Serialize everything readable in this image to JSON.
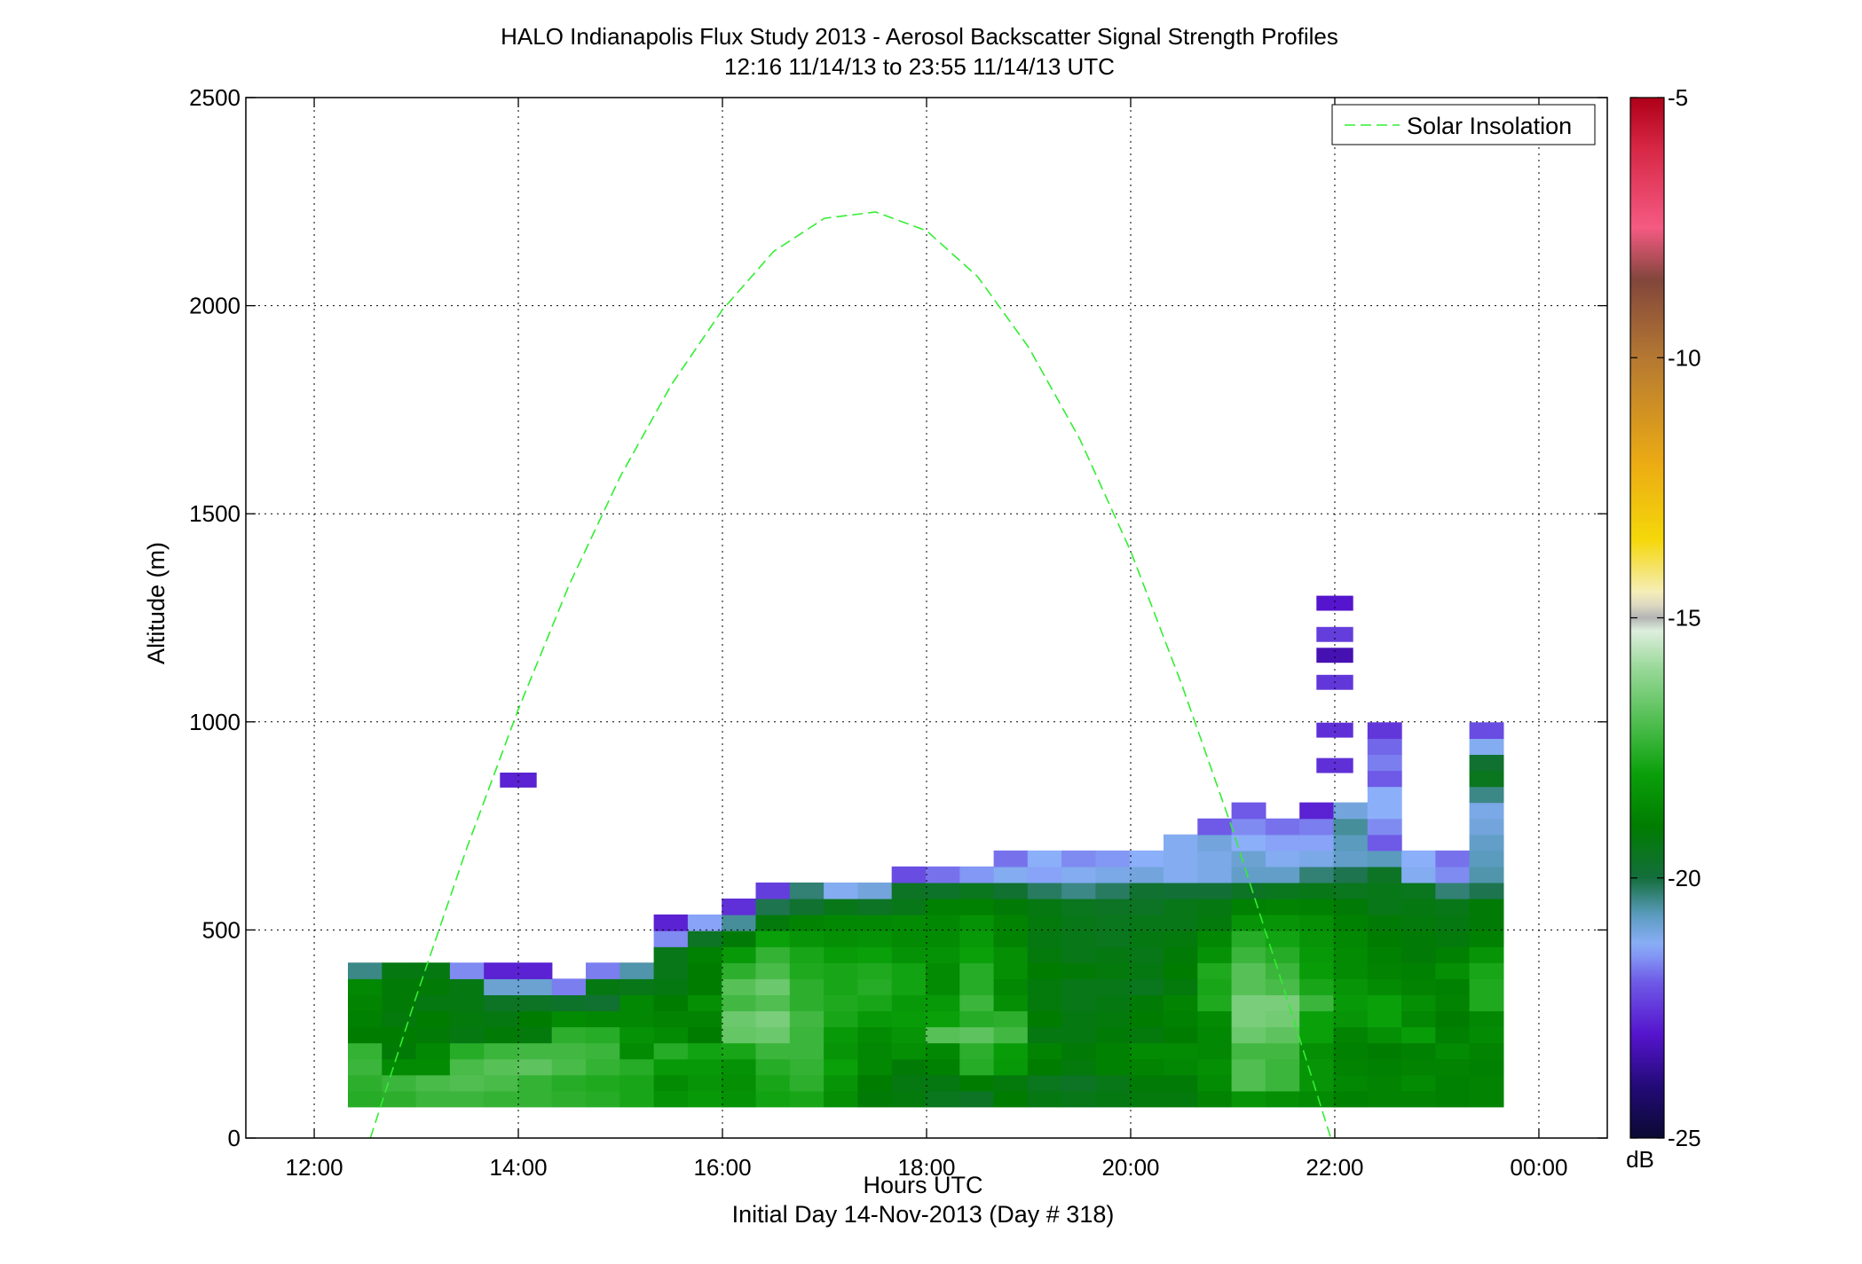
{
  "figure": {
    "title_lines": [
      "HALO Indianapolis Flux Study 2013 - Aerosol Backscatter Signal Strength Profiles",
      "12:16 11/14/13 to 23:55 11/14/13  UTC"
    ]
  },
  "chart_data": {
    "type": "heatmap",
    "xlabel": "Hours UTC",
    "xlabel2": "Initial Day 14-Nov-2013 (Day # 318)",
    "ylabel": "Altitude (m)",
    "xlim": [
      11.33,
      24.67
    ],
    "ylim": [
      0,
      2500
    ],
    "x_ticks": [
      12,
      14,
      16,
      18,
      20,
      22,
      24
    ],
    "x_tick_labels": [
      "12:00",
      "14:00",
      "16:00",
      "18:00",
      "20:00",
      "22:00",
      "00:00"
    ],
    "y_ticks": [
      0,
      500,
      1000,
      1500,
      2000,
      2500
    ],
    "y_tick_labels": [
      "0",
      "500",
      "1000",
      "1500",
      "2000",
      "2500"
    ],
    "grid": true,
    "legend": {
      "position": "top-right",
      "entries": [
        {
          "label": "Solar Insolation",
          "color": "#33ee33",
          "style": "dashed"
        }
      ]
    },
    "colorbar": {
      "label": "dB",
      "range": [
        -25,
        -5
      ],
      "ticks": [
        -25,
        -20,
        -15,
        -10,
        -5
      ],
      "tick_labels": [
        "-25",
        "-20",
        "-15",
        "-10",
        "-5"
      ]
    },
    "grid_cells": {
      "x_start": 12.33,
      "x_step": 0.333,
      "y_start": 75,
      "y_step": 38.5,
      "signal_db_rows_bottom_up": [
        [
          -17.6,
          -17.5,
          -17.3,
          -17.3,
          -17.4,
          -17.4,
          -17.5,
          -17.6,
          -17.8,
          -18.4,
          -18.2,
          -18.4,
          -17.9,
          -17.8,
          -18.5,
          -19.1,
          -19.2,
          -19.5,
          -19.6,
          -19.0,
          -19.3,
          -19.4,
          -19.3,
          -19.2,
          -19.2,
          -18.8,
          -18.3,
          -18.5,
          -18.6,
          -18.9,
          -18.8,
          -18.8,
          -18.9,
          -18.8
        ],
        [
          -17.5,
          -17.3,
          -17.1,
          -17.0,
          -17.1,
          -17.4,
          -17.6,
          -17.7,
          -17.8,
          -18.6,
          -18.3,
          -18.5,
          -17.8,
          -17.5,
          -18.3,
          -19.0,
          -19.3,
          -19.3,
          -19.0,
          -19.2,
          -19.5,
          -19.6,
          -19.4,
          -19.1,
          -19.1,
          -18.6,
          -17.0,
          -17.3,
          -18.3,
          -18.7,
          -18.8,
          -18.6,
          -18.9,
          -18.8
        ],
        [
          -17.3,
          -18.6,
          -18.6,
          -17.1,
          -16.9,
          -16.8,
          -17.1,
          -17.4,
          -17.6,
          -18.2,
          -18.2,
          -18.4,
          -17.6,
          -17.4,
          -18.0,
          -18.7,
          -19.1,
          -18.9,
          -17.6,
          -18.2,
          -19.0,
          -19.2,
          -18.9,
          -18.8,
          -18.7,
          -18.5,
          -17.0,
          -17.3,
          -18.3,
          -18.8,
          -18.9,
          -18.8,
          -18.8,
          -18.9
        ],
        [
          -17.4,
          -19.1,
          -18.7,
          -17.6,
          -17.3,
          -17.2,
          -17.2,
          -17.3,
          -18.6,
          -17.6,
          -17.9,
          -17.8,
          -17.3,
          -17.3,
          -18.3,
          -18.7,
          -18.5,
          -18.7,
          -17.5,
          -18.1,
          -18.8,
          -19.1,
          -18.9,
          -18.6,
          -18.6,
          -18.7,
          -17.2,
          -17.2,
          -18.5,
          -18.9,
          -19.0,
          -18.9,
          -18.6,
          -18.8
        ],
        [
          -19.0,
          -19.0,
          -19.1,
          -19.3,
          -19.1,
          -19.2,
          -17.5,
          -17.6,
          -18.4,
          -18.6,
          -19.0,
          -16.7,
          -16.6,
          -17.3,
          -18.2,
          -18.6,
          -18.3,
          -16.9,
          -16.8,
          -17.2,
          -19.3,
          -19.3,
          -19.1,
          -19.2,
          -19.0,
          -18.7,
          -16.6,
          -16.8,
          -18.0,
          -18.8,
          -18.5,
          -18.1,
          -18.9,
          -18.6
        ],
        [
          -18.9,
          -19.2,
          -19.0,
          -19.2,
          -19.3,
          -19.0,
          -18.6,
          -18.7,
          -18.7,
          -18.8,
          -18.8,
          -16.6,
          -16.4,
          -17.2,
          -17.8,
          -18.2,
          -18.1,
          -18.0,
          -17.6,
          -17.5,
          -19.0,
          -19.3,
          -19.2,
          -19.0,
          -18.9,
          -18.6,
          -16.4,
          -16.5,
          -18.0,
          -18.3,
          -18.0,
          -18.7,
          -19.0,
          -18.7
        ],
        [
          -18.8,
          -19.1,
          -19.3,
          -19.3,
          -19.6,
          -19.6,
          -19.7,
          -19.8,
          -18.7,
          -19.0,
          -18.5,
          -17.2,
          -17.0,
          -17.5,
          -17.7,
          -17.8,
          -18.2,
          -18.2,
          -17.3,
          -18.5,
          -19.2,
          -19.4,
          -19.3,
          -19.1,
          -18.8,
          -17.7,
          -16.4,
          -16.4,
          -17.3,
          -18.2,
          -18.0,
          -18.5,
          -18.8,
          -17.7
        ],
        [
          -18.7,
          -19.1,
          -19.1,
          -19.3,
          -20.9,
          -20.9,
          -21.7,
          -19.3,
          -19.4,
          -19.3,
          -19.0,
          -16.9,
          -16.6,
          -17.5,
          -17.8,
          -17.6,
          -17.9,
          -18.6,
          -17.6,
          -18.7,
          -19.2,
          -19.4,
          -19.4,
          -19.5,
          -19.2,
          -17.8,
          -16.9,
          -17.1,
          -17.8,
          -18.3,
          -18.6,
          -18.8,
          -18.9,
          -17.7
        ],
        [
          -20.4,
          -19.3,
          -19.3,
          -21.6,
          -22.8,
          -22.8,
          null,
          -21.7,
          -20.6,
          -19.4,
          -19.0,
          -17.5,
          -17.1,
          -17.7,
          -17.8,
          -17.7,
          -17.9,
          -18.6,
          -17.6,
          -18.5,
          -19.0,
          -19.1,
          -19.2,
          -19.3,
          -19.0,
          -17.7,
          -16.9,
          -17.3,
          -18.1,
          -18.6,
          -18.8,
          -18.9,
          -18.5,
          -17.8
        ],
        [
          null,
          null,
          null,
          null,
          null,
          null,
          null,
          null,
          null,
          -19.4,
          -18.9,
          -18.2,
          -17.4,
          -17.8,
          -18.1,
          -18.0,
          -18.4,
          -18.4,
          -18.0,
          -18.5,
          -19.2,
          -19.4,
          -19.3,
          -19.4,
          -19.1,
          -18.4,
          -17.3,
          -17.6,
          -18.2,
          -18.6,
          -18.9,
          -19.1,
          -18.9,
          -18.3
        ],
        [
          null,
          null,
          null,
          null,
          null,
          null,
          null,
          null,
          null,
          -21.6,
          -19.6,
          -19.1,
          -18.0,
          -18.3,
          -18.5,
          -18.4,
          -18.6,
          -18.6,
          -18.2,
          -18.8,
          -19.3,
          -19.4,
          -19.5,
          -19.3,
          -19.2,
          -18.7,
          -17.6,
          -17.9,
          -18.3,
          -18.7,
          -19.0,
          -19.1,
          -19.2,
          -18.9
        ],
        [
          null,
          null,
          null,
          null,
          null,
          null,
          null,
          null,
          null,
          -22.8,
          -21.4,
          -20.5,
          -19.2,
          -18.8,
          -18.7,
          -18.7,
          -18.6,
          -18.7,
          -18.4,
          -18.8,
          -19.2,
          -19.4,
          -19.5,
          -19.4,
          -19.4,
          -19.2,
          -18.3,
          -18.3,
          -18.5,
          -18.9,
          -19.1,
          -19.2,
          -19.3,
          -19.1
        ],
        [
          null,
          null,
          null,
          null,
          null,
          null,
          null,
          null,
          null,
          null,
          null,
          -22.6,
          -20.1,
          -19.8,
          -19.4,
          -19.6,
          -19.4,
          -18.9,
          -18.9,
          -19.1,
          -19.3,
          -19.5,
          -19.6,
          -19.6,
          -19.4,
          -19.3,
          -18.9,
          -18.8,
          -18.9,
          -19.1,
          -19.4,
          -19.3,
          -19.4,
          -19.1
        ],
        [
          null,
          null,
          null,
          null,
          null,
          null,
          null,
          null,
          null,
          null,
          null,
          null,
          -22.4,
          -20.3,
          -21.2,
          -21.0,
          -19.6,
          -19.7,
          -19.5,
          -19.8,
          -20.2,
          -20.4,
          -20.2,
          -19.8,
          -19.9,
          -19.9,
          -19.6,
          -19.5,
          -19.4,
          -19.5,
          -19.4,
          -19.5,
          -20.3,
          -20.1
        ],
        [
          null,
          null,
          null,
          null,
          null,
          null,
          null,
          null,
          null,
          null,
          null,
          null,
          null,
          null,
          null,
          null,
          -22.2,
          -21.8,
          -21.5,
          -21.2,
          -21.4,
          -21.2,
          -21.1,
          -21.0,
          -21.2,
          -21.1,
          -20.8,
          -20.8,
          -20.3,
          -20.1,
          -19.6,
          -21.2,
          -21.6,
          -20.6
        ],
        [
          null,
          null,
          null,
          null,
          null,
          null,
          null,
          null,
          null,
          null,
          null,
          null,
          null,
          null,
          null,
          null,
          null,
          null,
          null,
          -21.8,
          -21.3,
          -21.6,
          -21.5,
          -21.3,
          -21.2,
          -21.1,
          -20.9,
          -21.2,
          -21.1,
          -20.8,
          -20.7,
          -21.3,
          -21.8,
          -20.7
        ],
        [
          null,
          null,
          null,
          null,
          null,
          null,
          null,
          null,
          null,
          null,
          null,
          null,
          null,
          null,
          null,
          null,
          null,
          null,
          null,
          null,
          null,
          null,
          null,
          null,
          -21.2,
          -21.0,
          -21.3,
          -21.4,
          -21.4,
          -20.7,
          -22.0,
          null,
          null,
          -20.8
        ],
        [
          null,
          null,
          null,
          null,
          null,
          null,
          null,
          null,
          null,
          null,
          null,
          null,
          null,
          null,
          null,
          null,
          null,
          null,
          null,
          null,
          null,
          null,
          null,
          null,
          null,
          -22.0,
          -21.6,
          -21.8,
          -21.7,
          -20.5,
          -21.6,
          null,
          null,
          -21.0
        ],
        [
          null,
          null,
          null,
          null,
          null,
          null,
          null,
          null,
          null,
          null,
          null,
          null,
          null,
          null,
          null,
          null,
          null,
          null,
          null,
          null,
          null,
          null,
          null,
          null,
          null,
          null,
          -22.0,
          null,
          -22.8,
          -21.0,
          -21.3,
          null,
          null,
          -21.1
        ],
        [
          null,
          null,
          null,
          null,
          null,
          null,
          null,
          null,
          null,
          null,
          null,
          null,
          null,
          null,
          null,
          null,
          null,
          null,
          null,
          null,
          null,
          null,
          null,
          null,
          null,
          null,
          null,
          null,
          null,
          null,
          -21.3,
          null,
          null,
          -20.4
        ],
        [
          null,
          null,
          null,
          null,
          null,
          null,
          null,
          null,
          null,
          null,
          null,
          null,
          null,
          null,
          null,
          null,
          null,
          null,
          null,
          null,
          null,
          null,
          null,
          null,
          null,
          null,
          null,
          null,
          null,
          null,
          -22.0,
          null,
          null,
          -19.5
        ],
        [
          null,
          null,
          null,
          null,
          null,
          null,
          null,
          null,
          null,
          null,
          null,
          null,
          null,
          null,
          null,
          null,
          null,
          null,
          null,
          null,
          null,
          null,
          null,
          null,
          null,
          null,
          null,
          null,
          null,
          null,
          -21.7,
          null,
          null,
          -19.8
        ],
        [
          null,
          null,
          null,
          null,
          null,
          null,
          null,
          null,
          null,
          null,
          null,
          null,
          null,
          null,
          null,
          null,
          null,
          null,
          null,
          null,
          null,
          null,
          null,
          null,
          null,
          null,
          null,
          null,
          null,
          null,
          -21.9,
          null,
          null,
          -21.2
        ],
        [
          null,
          null,
          null,
          null,
          null,
          null,
          null,
          null,
          null,
          null,
          null,
          null,
          null,
          null,
          null,
          null,
          null,
          null,
          null,
          null,
          null,
          null,
          null,
          null,
          null,
          null,
          null,
          null,
          null,
          null,
          -22.5,
          null,
          null,
          -22.2
        ]
      ],
      "isolated_cells": [
        {
          "x": 14.0,
          "y": 860,
          "db": -22.8
        },
        {
          "x": 22.0,
          "y": 895,
          "db": -22.6
        },
        {
          "x": 22.0,
          "y": 980,
          "db": -22.6
        },
        {
          "x": 22.0,
          "y": 1095,
          "db": -22.5
        },
        {
          "x": 22.0,
          "y": 1160,
          "db": -23.3
        },
        {
          "x": 22.0,
          "y": 1210,
          "db": -22.4
        },
        {
          "x": 22.0,
          "y": 1285,
          "db": -23.0
        }
      ]
    },
    "series": [
      {
        "name": "Solar Insolation",
        "x": [
          12.55,
          13.0,
          13.5,
          14.0,
          14.5,
          15.0,
          15.5,
          16.0,
          16.5,
          17.0,
          17.5,
          18.0,
          18.5,
          19.0,
          19.5,
          20.0,
          20.5,
          21.0,
          21.5,
          22.0,
          22.45
        ],
        "y": [
          0,
          340,
          700,
          1030,
          1330,
          1590,
          1810,
          1990,
          2130,
          2210,
          2225,
          2180,
          2070,
          1900,
          1680,
          1410,
          1090,
          740,
          360,
          -30,
          -350
        ]
      }
    ]
  }
}
